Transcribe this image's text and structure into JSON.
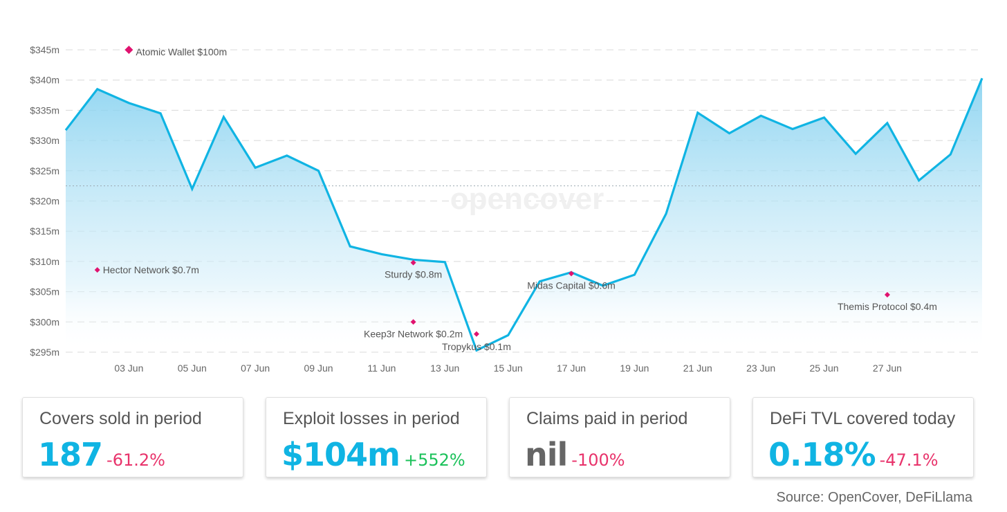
{
  "chart_data": {
    "type": "area",
    "title": "",
    "watermark": "opencover",
    "xlabel": "",
    "ylabel": "",
    "ylim": [
      294,
      346
    ],
    "y_ticks": [
      {
        "value": 295,
        "label": "$295m"
      },
      {
        "value": 300,
        "label": "$300m"
      },
      {
        "value": 305,
        "label": "$305m"
      },
      {
        "value": 310,
        "label": "$310m"
      },
      {
        "value": 315,
        "label": "$315m"
      },
      {
        "value": 320,
        "label": "$320m"
      },
      {
        "value": 325,
        "label": "$325m"
      },
      {
        "value": 330,
        "label": "$330m"
      },
      {
        "value": 335,
        "label": "$335m"
      },
      {
        "value": 340,
        "label": "$340m"
      },
      {
        "value": 345,
        "label": "$345m"
      }
    ],
    "x_ticks": [
      {
        "day": 3,
        "label": "03 Jun"
      },
      {
        "day": 5,
        "label": "05 Jun"
      },
      {
        "day": 7,
        "label": "07 Jun"
      },
      {
        "day": 9,
        "label": "09 Jun"
      },
      {
        "day": 11,
        "label": "11 Jun"
      },
      {
        "day": 13,
        "label": "13 Jun"
      },
      {
        "day": 15,
        "label": "15 Jun"
      },
      {
        "day": 17,
        "label": "17 Jun"
      },
      {
        "day": 19,
        "label": "19 Jun"
      },
      {
        "day": 21,
        "label": "21 Jun"
      },
      {
        "day": 23,
        "label": "23 Jun"
      },
      {
        "day": 25,
        "label": "25 Jun"
      },
      {
        "day": 27,
        "label": "27 Jun"
      }
    ],
    "xlim": [
      1,
      30
    ],
    "series": [
      {
        "name": "DeFi TVL covered",
        "color": "#10b4e3",
        "x": [
          1,
          2,
          3,
          4,
          5,
          6,
          7,
          8,
          9,
          10,
          11,
          12,
          13,
          14,
          15,
          16,
          17,
          18,
          19,
          20,
          21,
          22,
          23,
          24,
          25,
          26,
          27,
          28,
          29,
          30
        ],
        "values": [
          331.7,
          338.5,
          336.2,
          334.5,
          322.0,
          333.9,
          325.5,
          327.5,
          325.0,
          312.5,
          311.2,
          310.3,
          309.9,
          295.3,
          297.8,
          306.7,
          308.2,
          306.0,
          307.8,
          317.9,
          334.6,
          331.2,
          334.1,
          331.9,
          333.8,
          327.8,
          332.9,
          323.4,
          327.7,
          340.3
        ]
      }
    ],
    "average_line": 322.5,
    "annotations": [
      {
        "day": 3,
        "value": 345.0,
        "label": "Atomic Wallet $100m",
        "big": true
      },
      {
        "day": 2,
        "value": 308.6,
        "label": "Hector Network $0.7m"
      },
      {
        "day": 12,
        "value": 309.8,
        "label": "Sturdy $0.8m"
      },
      {
        "day": 12,
        "value": 300.0,
        "label": "Keep3r Network $0.2m"
      },
      {
        "day": 14,
        "value": 298.0,
        "label": "Tropykus $0.1m"
      },
      {
        "day": 17,
        "value": 308.0,
        "label": "Midas Capital $0.6m"
      },
      {
        "day": 27,
        "value": 304.5,
        "label": "Themis Protocol $0.4m"
      }
    ]
  },
  "cards": [
    {
      "label": "Covers sold in period",
      "value": "187",
      "change": "-61.2%",
      "value_color": "#10b4e3",
      "change_color": "#e8336b"
    },
    {
      "label": "Exploit losses in period",
      "value": "$104m",
      "change": "+552%",
      "value_color": "#10b4e3",
      "change_color": "#1bc15a"
    },
    {
      "label": "Claims paid in period",
      "value": "nil",
      "change": "-100%",
      "value_color": "#666666",
      "change_color": "#e8336b"
    },
    {
      "label": "DeFi TVL covered today",
      "value": "0.18%",
      "change": "-47.1%",
      "value_color": "#10b4e3",
      "change_color": "#e8336b"
    }
  ],
  "source": "Source: OpenCover, DeFiLlama",
  "colors": {
    "accent": "#10b4e3",
    "marker": "#e0136f",
    "grid": "#d8d8d8"
  }
}
